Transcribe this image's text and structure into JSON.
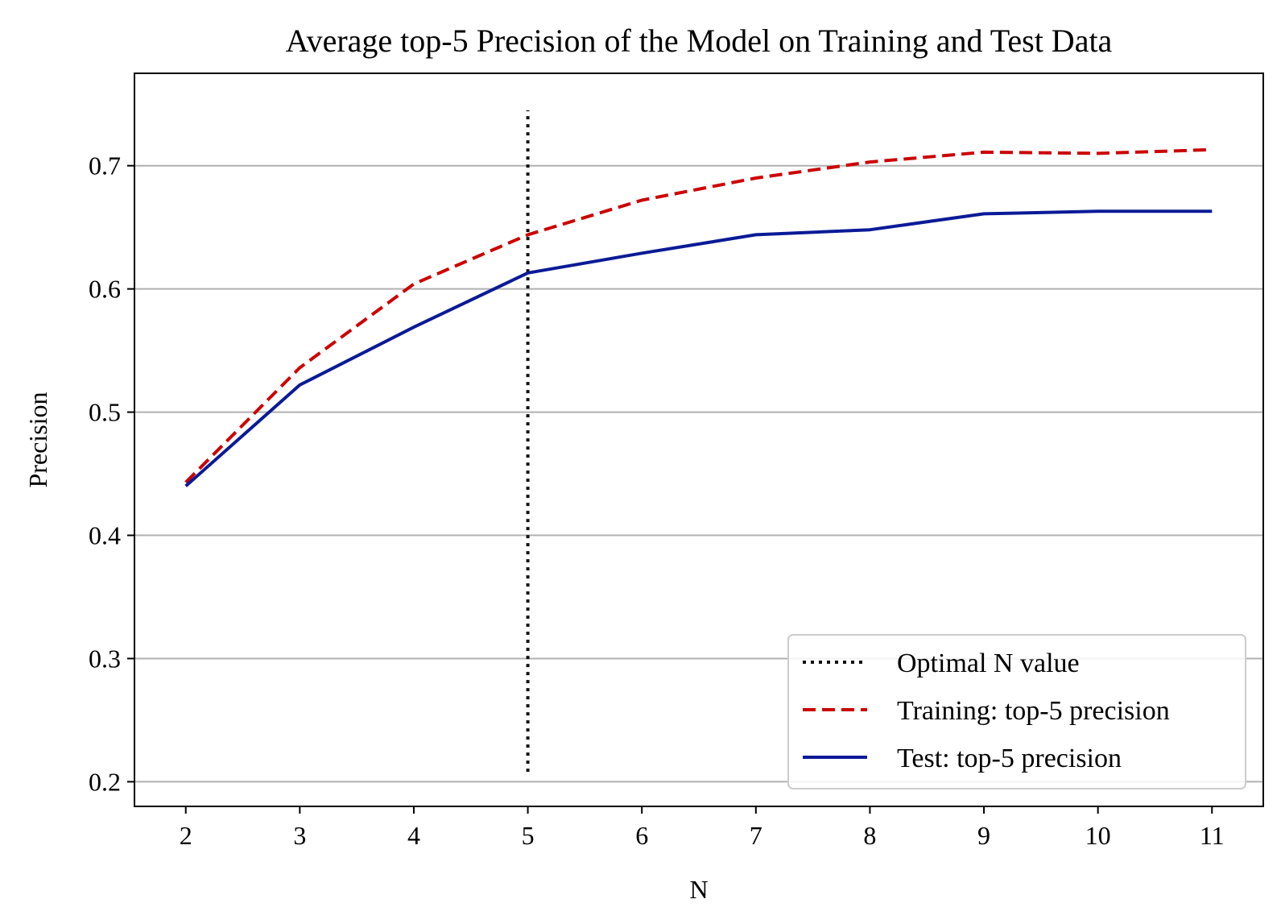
{
  "chart_data": {
    "type": "line",
    "title": "Average top-5 Precision of the Model on Training and Test Data",
    "xlabel": "N",
    "ylabel": "Precision",
    "x": [
      2,
      3,
      4,
      5,
      6,
      7,
      8,
      9,
      10,
      11
    ],
    "xlim": [
      1.55,
      11.45
    ],
    "ylim": [
      0.18,
      0.775
    ],
    "xticks": [
      2,
      3,
      4,
      5,
      6,
      7,
      8,
      9,
      10,
      11
    ],
    "yticks": [
      0.2,
      0.3,
      0.4,
      0.5,
      0.6,
      0.7
    ],
    "ytick_labels": [
      "0.2",
      "0.3",
      "0.4",
      "0.5",
      "0.6",
      "0.7"
    ],
    "grid": "horizontal",
    "legend_position": "lower-right",
    "vline": {
      "name": "Optimal N value",
      "x": 5,
      "y_from": 0.208,
      "y_to": 0.745,
      "color": "#111111",
      "style": "dotted"
    },
    "series": [
      {
        "name": "Training: top-5 precision",
        "color": "#cc0000",
        "style": "dashed",
        "values": [
          0.443,
          0.536,
          0.604,
          0.644,
          0.672,
          0.69,
          0.703,
          0.711,
          0.71,
          0.713
        ]
      },
      {
        "name": "Test: top-5 precision",
        "color": "#0a1a96",
        "style": "solid",
        "values": [
          0.44,
          0.522,
          0.569,
          0.613,
          0.629,
          0.644,
          0.648,
          0.661,
          0.663,
          0.663
        ]
      }
    ]
  }
}
